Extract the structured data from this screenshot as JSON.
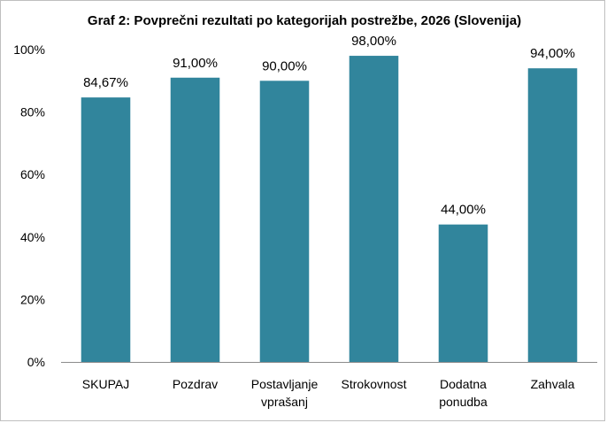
{
  "chart_data": {
    "type": "bar",
    "title": "Graf 2: Povprečni rezultati po kategorijah postrežbe, 2026 (Slovenija)",
    "xlabel": "",
    "ylabel": "",
    "categories": [
      [
        "SKUPAJ"
      ],
      [
        "Pozdrav"
      ],
      [
        "Postavljanje",
        "vprašanj"
      ],
      [
        "Strokovnost"
      ],
      [
        "Dodatna",
        "ponudba"
      ],
      [
        "Zahvala"
      ]
    ],
    "values": [
      84.67,
      91.0,
      90.0,
      98.0,
      44.0,
      94.0
    ],
    "data_labels": [
      "84,67%",
      "91,00%",
      "90,00%",
      "98,00%",
      "44,00%",
      "94,00%"
    ],
    "ylim": [
      0,
      100
    ],
    "yticks": [
      0,
      20,
      40,
      60,
      80,
      100
    ],
    "ytick_labels": [
      "0%",
      "20%",
      "40%",
      "60%",
      "80%",
      "100%"
    ],
    "grid": false,
    "legend": "none",
    "bar_color": "#31859C"
  }
}
